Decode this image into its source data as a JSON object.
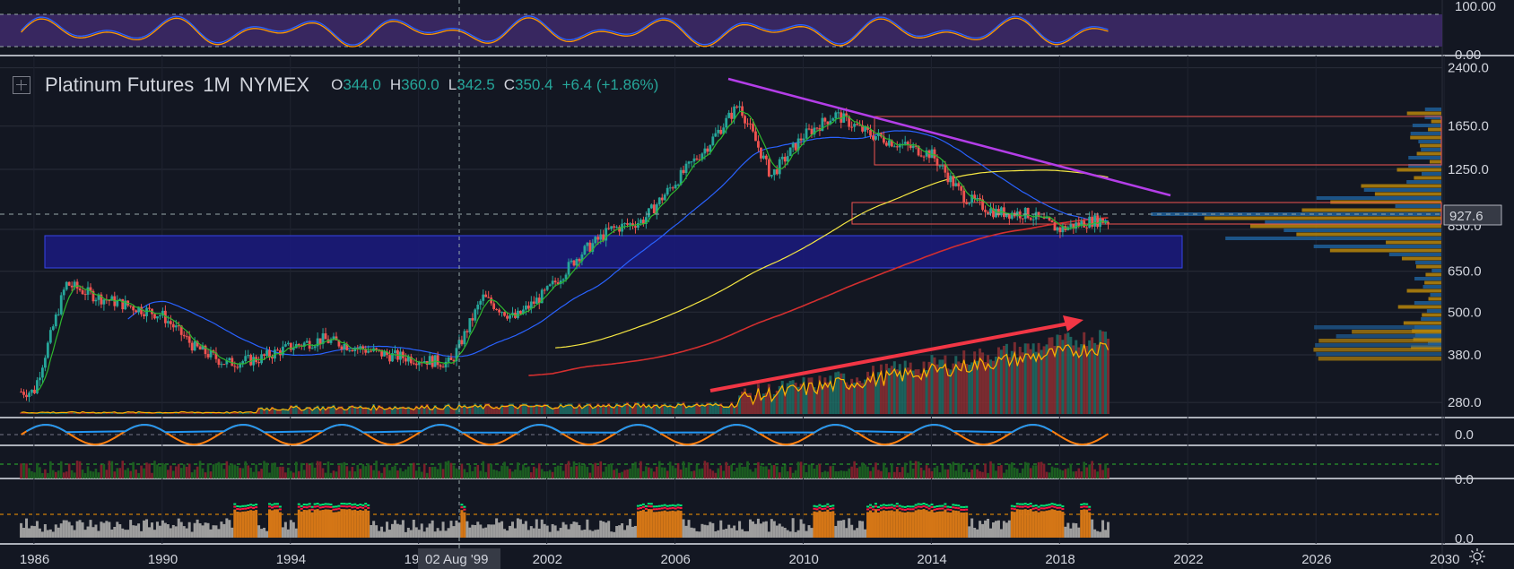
{
  "legend": {
    "symbol": "Platinum Futures",
    "interval": "1M",
    "exchange": "NYMEX",
    "open_label": "O",
    "open": "344.0",
    "high_label": "H",
    "high": "360.0",
    "low_label": "L",
    "low": "342.5",
    "close_label": "C",
    "close": "350.4",
    "change": "+6.4 (+1.86%)"
  },
  "price_axis": {
    "ticks": [
      "2400.0",
      "1650.0",
      "1250.0",
      "850.0",
      "650.0",
      "500.0",
      "380.0",
      "280.0"
    ],
    "last_price": "927.6"
  },
  "top_oscillator_axis": [
    "100.00",
    "0.00"
  ],
  "mid_oscillator_axis": [
    "0.0"
  ],
  "lower_panel_axis": [
    "0.0"
  ],
  "bottom_panel_axis": [
    "0.0"
  ],
  "time_axis": [
    "1986",
    "1990",
    "1994",
    "199",
    "2002",
    "2006",
    "2010",
    "2014",
    "2018",
    "2022",
    "2026",
    "2030"
  ],
  "crosshair_label": "02 Aug '99",
  "colors": {
    "background": "#131722",
    "up": "#26a69a",
    "down": "#ef5350",
    "trendline": "#b43ee8",
    "arrow": "#f23645",
    "zone": "#1a1a7a",
    "ma_fast": "#2eb82e",
    "ma_mid": "#2962ff",
    "ma_yellow": "#f5e642",
    "ma_red": "#d32f2f"
  },
  "chart_data": {
    "type": "line",
    "title": "Platinum Futures · 1M · NYMEX",
    "y_scale": "log",
    "ylim": [
      260,
      2450
    ],
    "x": [
      1986,
      1987,
      1988,
      1989,
      1990,
      1991,
      1992,
      1993,
      1994,
      1995,
      1996,
      1997,
      1998,
      1999,
      2000,
      2001,
      2002,
      2003,
      2004,
      2005,
      2006,
      2007,
      2008,
      2009,
      2010,
      2011,
      2012,
      2013,
      2014,
      2015,
      2016,
      2017,
      2018,
      2019
    ],
    "series": [
      {
        "name": "Platinum",
        "values": [
          300,
          600,
          550,
          520,
          490,
          400,
          360,
          370,
          400,
          420,
          400,
          380,
          370,
          360,
          550,
          480,
          570,
          720,
          850,
          900,
          1150,
          1450,
          1900,
          1200,
          1550,
          1780,
          1580,
          1470,
          1380,
          1050,
          950,
          940,
          850,
          900
        ]
      }
    ],
    "last_price": 927.6,
    "xlim": [
      1985.5,
      2030.5
    ]
  }
}
